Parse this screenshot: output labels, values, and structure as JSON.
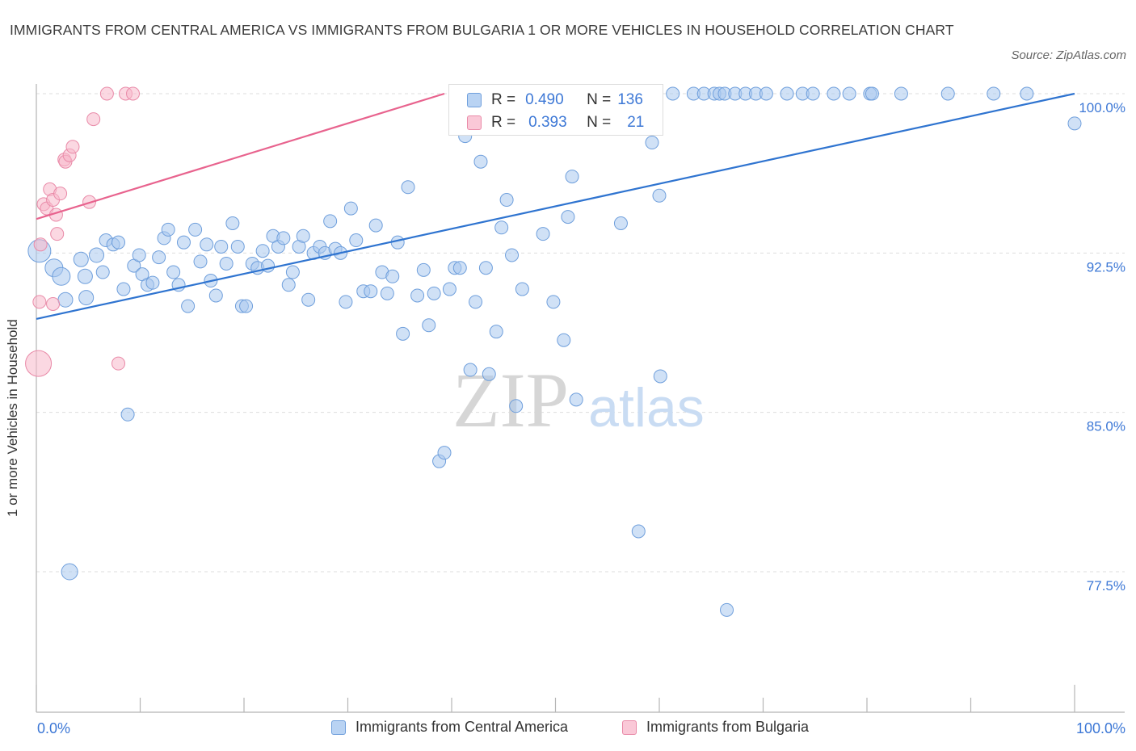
{
  "title": "IMMIGRANTS FROM CENTRAL AMERICA VS IMMIGRANTS FROM BULGARIA 1 OR MORE VEHICLES IN HOUSEHOLD CORRELATION CHART",
  "source": "Source: ZipAtlas.com",
  "watermark": {
    "zip": "ZIP",
    "atlas": "atlas"
  },
  "colors": {
    "blue_fill": "#a9c8ef",
    "blue_stroke": "#6f9fdc",
    "blue_line": "#2f74d0",
    "pink_fill": "#f7b8cb",
    "pink_stroke": "#e98aa8",
    "pink_line": "#e8638e",
    "axis_label": "#3d78d6",
    "grid": "#dddddd"
  },
  "stats_box": {
    "rows": [
      {
        "r_label": "R =",
        "r_value": "0.490",
        "n_label": "N =",
        "n_value": "136"
      },
      {
        "r_label": "R =",
        "r_value": "0.393",
        "n_label": "N =",
        "n_value": "21"
      }
    ]
  },
  "legend": {
    "central_america": "Immigrants from Central America",
    "bulgaria": "Immigrants from Bulgaria"
  },
  "chart_data": {
    "type": "scatter",
    "xlabel": "",
    "ylabel": "1 or more Vehicles in Household",
    "xlim": [
      0,
      100
    ],
    "ylim": [
      70,
      100
    ],
    "x_tick_labels": [
      "0.0%",
      "100.0%"
    ],
    "y_ticks": [
      77.5,
      85.0,
      92.5,
      100.0
    ],
    "y_tick_labels": [
      "77.5%",
      "85.0%",
      "92.5%",
      "100.0%"
    ],
    "grid": true,
    "series": [
      {
        "name": "Immigrants from Central America",
        "color": "#a9c8ef",
        "trend": {
          "x": [
            0,
            100
          ],
          "y": [
            89.4,
            100.0
          ]
        },
        "points": [
          {
            "x": 0.3,
            "y": 92.6,
            "s": 14
          },
          {
            "x": 1.7,
            "y": 91.8,
            "s": 11
          },
          {
            "x": 2.4,
            "y": 91.4,
            "s": 11
          },
          {
            "x": 2.8,
            "y": 90.3,
            "s": 9
          },
          {
            "x": 3.2,
            "y": 77.5,
            "s": 10
          },
          {
            "x": 4.3,
            "y": 92.2,
            "s": 9
          },
          {
            "x": 4.7,
            "y": 91.4,
            "s": 9
          },
          {
            "x": 4.8,
            "y": 90.4,
            "s": 9
          },
          {
            "x": 5.8,
            "y": 92.4,
            "s": 9
          },
          {
            "x": 6.4,
            "y": 91.6,
            "s": 8
          },
          {
            "x": 6.7,
            "y": 93.1,
            "s": 8
          },
          {
            "x": 7.4,
            "y": 92.9,
            "s": 8
          },
          {
            "x": 7.9,
            "y": 93.0,
            "s": 8
          },
          {
            "x": 8.4,
            "y": 90.8,
            "s": 8
          },
          {
            "x": 8.8,
            "y": 84.9,
            "s": 8
          },
          {
            "x": 9.4,
            "y": 91.9,
            "s": 8
          },
          {
            "x": 9.9,
            "y": 92.4,
            "s": 8
          },
          {
            "x": 10.2,
            "y": 91.5,
            "s": 8
          },
          {
            "x": 10.7,
            "y": 91.0,
            "s": 8
          },
          {
            "x": 11.2,
            "y": 91.1,
            "s": 8
          },
          {
            "x": 11.8,
            "y": 92.3,
            "s": 8
          },
          {
            "x": 12.3,
            "y": 93.2,
            "s": 8
          },
          {
            "x": 12.7,
            "y": 93.6,
            "s": 8
          },
          {
            "x": 13.2,
            "y": 91.6,
            "s": 8
          },
          {
            "x": 13.7,
            "y": 91.0,
            "s": 8
          },
          {
            "x": 14.2,
            "y": 93.0,
            "s": 8
          },
          {
            "x": 14.6,
            "y": 90.0,
            "s": 8
          },
          {
            "x": 15.3,
            "y": 93.6,
            "s": 8
          },
          {
            "x": 15.8,
            "y": 92.1,
            "s": 8
          },
          {
            "x": 16.4,
            "y": 92.9,
            "s": 8
          },
          {
            "x": 16.8,
            "y": 91.2,
            "s": 8
          },
          {
            "x": 17.3,
            "y": 90.5,
            "s": 8
          },
          {
            "x": 17.8,
            "y": 92.8,
            "s": 8
          },
          {
            "x": 18.3,
            "y": 92.0,
            "s": 8
          },
          {
            "x": 18.9,
            "y": 93.9,
            "s": 8
          },
          {
            "x": 19.4,
            "y": 92.8,
            "s": 8
          },
          {
            "x": 19.8,
            "y": 90.0,
            "s": 8
          },
          {
            "x": 20.2,
            "y": 90.0,
            "s": 8
          },
          {
            "x": 20.8,
            "y": 92.0,
            "s": 8
          },
          {
            "x": 21.3,
            "y": 91.8,
            "s": 8
          },
          {
            "x": 21.8,
            "y": 92.6,
            "s": 8
          },
          {
            "x": 22.3,
            "y": 91.9,
            "s": 8
          },
          {
            "x": 22.8,
            "y": 93.3,
            "s": 8
          },
          {
            "x": 23.3,
            "y": 92.8,
            "s": 8
          },
          {
            "x": 23.8,
            "y": 93.2,
            "s": 8
          },
          {
            "x": 24.3,
            "y": 91.0,
            "s": 8
          },
          {
            "x": 24.7,
            "y": 91.6,
            "s": 8
          },
          {
            "x": 25.3,
            "y": 92.8,
            "s": 8
          },
          {
            "x": 25.7,
            "y": 93.3,
            "s": 8
          },
          {
            "x": 26.2,
            "y": 90.3,
            "s": 8
          },
          {
            "x": 26.7,
            "y": 92.5,
            "s": 8
          },
          {
            "x": 27.3,
            "y": 92.8,
            "s": 8
          },
          {
            "x": 27.8,
            "y": 92.5,
            "s": 8
          },
          {
            "x": 28.3,
            "y": 94.0,
            "s": 8
          },
          {
            "x": 28.8,
            "y": 92.7,
            "s": 8
          },
          {
            "x": 29.3,
            "y": 92.5,
            "s": 8
          },
          {
            "x": 29.8,
            "y": 90.2,
            "s": 8
          },
          {
            "x": 30.3,
            "y": 94.6,
            "s": 8
          },
          {
            "x": 30.8,
            "y": 93.1,
            "s": 8
          },
          {
            "x": 31.5,
            "y": 90.7,
            "s": 8
          },
          {
            "x": 32.2,
            "y": 90.7,
            "s": 8
          },
          {
            "x": 32.7,
            "y": 93.8,
            "s": 8
          },
          {
            "x": 33.3,
            "y": 91.6,
            "s": 8
          },
          {
            "x": 33.8,
            "y": 90.6,
            "s": 8
          },
          {
            "x": 34.3,
            "y": 91.4,
            "s": 8
          },
          {
            "x": 34.8,
            "y": 93.0,
            "s": 8
          },
          {
            "x": 35.3,
            "y": 88.7,
            "s": 8
          },
          {
            "x": 35.8,
            "y": 95.6,
            "s": 8
          },
          {
            "x": 36.7,
            "y": 90.5,
            "s": 8
          },
          {
            "x": 37.3,
            "y": 91.7,
            "s": 8
          },
          {
            "x": 37.8,
            "y": 89.1,
            "s": 8
          },
          {
            "x": 38.3,
            "y": 90.6,
            "s": 8
          },
          {
            "x": 38.8,
            "y": 82.7,
            "s": 8
          },
          {
            "x": 39.3,
            "y": 83.1,
            "s": 8
          },
          {
            "x": 39.8,
            "y": 90.8,
            "s": 8
          },
          {
            "x": 40.3,
            "y": 91.8,
            "s": 8
          },
          {
            "x": 40.8,
            "y": 91.8,
            "s": 8
          },
          {
            "x": 41.3,
            "y": 98.0,
            "s": 8
          },
          {
            "x": 41.8,
            "y": 87.0,
            "s": 8
          },
          {
            "x": 42.3,
            "y": 90.2,
            "s": 8
          },
          {
            "x": 42.8,
            "y": 96.8,
            "s": 8
          },
          {
            "x": 43.3,
            "y": 91.8,
            "s": 8
          },
          {
            "x": 43.6,
            "y": 86.8,
            "s": 8
          },
          {
            "x": 44.3,
            "y": 88.8,
            "s": 8
          },
          {
            "x": 44.8,
            "y": 93.7,
            "s": 8
          },
          {
            "x": 45.3,
            "y": 95.0,
            "s": 8
          },
          {
            "x": 45.8,
            "y": 92.4,
            "s": 8
          },
          {
            "x": 46.2,
            "y": 85.3,
            "s": 8
          },
          {
            "x": 46.8,
            "y": 90.8,
            "s": 8
          },
          {
            "x": 47.3,
            "y": 100.0,
            "s": 8
          },
          {
            "x": 47.8,
            "y": 100.0,
            "s": 8
          },
          {
            "x": 48.3,
            "y": 99.2,
            "s": 8
          },
          {
            "x": 48.8,
            "y": 93.4,
            "s": 8
          },
          {
            "x": 49.3,
            "y": 100.0,
            "s": 8
          },
          {
            "x": 49.8,
            "y": 90.2,
            "s": 8
          },
          {
            "x": 50.8,
            "y": 88.4,
            "s": 8
          },
          {
            "x": 51.2,
            "y": 94.2,
            "s": 8
          },
          {
            "x": 51.6,
            "y": 96.1,
            "s": 8
          },
          {
            "x": 52.0,
            "y": 85.6,
            "s": 8
          },
          {
            "x": 52.5,
            "y": 98.5,
            "s": 8
          },
          {
            "x": 53.3,
            "y": 100.0,
            "s": 8
          },
          {
            "x": 54.8,
            "y": 100.0,
            "s": 8
          },
          {
            "x": 55.8,
            "y": 100.0,
            "s": 8
          },
          {
            "x": 56.3,
            "y": 93.9,
            "s": 8
          },
          {
            "x": 57.3,
            "y": 100.0,
            "s": 8
          },
          {
            "x": 58.3,
            "y": 100.0,
            "s": 8
          },
          {
            "x": 59.3,
            "y": 97.7,
            "s": 8
          },
          {
            "x": 58.0,
            "y": 79.4,
            "s": 8
          },
          {
            "x": 60.0,
            "y": 95.2,
            "s": 8
          },
          {
            "x": 60.1,
            "y": 86.7,
            "s": 8
          },
          {
            "x": 61.3,
            "y": 100.0,
            "s": 8
          },
          {
            "x": 63.3,
            "y": 100.0,
            "s": 8
          },
          {
            "x": 64.3,
            "y": 100.0,
            "s": 8
          },
          {
            "x": 65.3,
            "y": 100.0,
            "s": 8
          },
          {
            "x": 65.8,
            "y": 100.0,
            "s": 8
          },
          {
            "x": 66.3,
            "y": 100.0,
            "s": 8
          },
          {
            "x": 67.3,
            "y": 100.0,
            "s": 8
          },
          {
            "x": 66.5,
            "y": 75.7,
            "s": 8
          },
          {
            "x": 68.3,
            "y": 100.0,
            "s": 8
          },
          {
            "x": 69.3,
            "y": 100.0,
            "s": 8
          },
          {
            "x": 70.3,
            "y": 100.0,
            "s": 8
          },
          {
            "x": 72.3,
            "y": 100.0,
            "s": 8
          },
          {
            "x": 73.8,
            "y": 100.0,
            "s": 8
          },
          {
            "x": 74.8,
            "y": 100.0,
            "s": 8
          },
          {
            "x": 76.8,
            "y": 100.0,
            "s": 8
          },
          {
            "x": 78.3,
            "y": 100.0,
            "s": 8
          },
          {
            "x": 80.3,
            "y": 100.0,
            "s": 8
          },
          {
            "x": 80.5,
            "y": 100.0,
            "s": 8
          },
          {
            "x": 83.3,
            "y": 100.0,
            "s": 8
          },
          {
            "x": 87.8,
            "y": 100.0,
            "s": 8
          },
          {
            "x": 92.2,
            "y": 100.0,
            "s": 8
          },
          {
            "x": 95.4,
            "y": 100.0,
            "s": 8
          },
          {
            "x": 100.0,
            "y": 98.6,
            "s": 8
          }
        ]
      },
      {
        "name": "Immigrants from Bulgaria",
        "color": "#f7b8cb",
        "trend": {
          "x": [
            0,
            39.3
          ],
          "y": [
            94.1,
            100.0
          ]
        },
        "points": [
          {
            "x": 0.2,
            "y": 87.3,
            "s": 16
          },
          {
            "x": 0.3,
            "y": 90.2,
            "s": 8
          },
          {
            "x": 0.4,
            "y": 92.9,
            "s": 8
          },
          {
            "x": 0.7,
            "y": 94.8,
            "s": 8
          },
          {
            "x": 1.0,
            "y": 94.6,
            "s": 8
          },
          {
            "x": 1.3,
            "y": 95.5,
            "s": 8
          },
          {
            "x": 1.6,
            "y": 95.0,
            "s": 8
          },
          {
            "x": 1.6,
            "y": 90.1,
            "s": 8
          },
          {
            "x": 1.9,
            "y": 94.3,
            "s": 8
          },
          {
            "x": 2.0,
            "y": 93.4,
            "s": 8
          },
          {
            "x": 2.3,
            "y": 95.3,
            "s": 8
          },
          {
            "x": 2.7,
            "y": 96.9,
            "s": 8
          },
          {
            "x": 2.8,
            "y": 96.8,
            "s": 8
          },
          {
            "x": 3.2,
            "y": 97.1,
            "s": 8
          },
          {
            "x": 3.5,
            "y": 97.5,
            "s": 8
          },
          {
            "x": 5.1,
            "y": 94.9,
            "s": 8
          },
          {
            "x": 5.5,
            "y": 98.8,
            "s": 8
          },
          {
            "x": 6.8,
            "y": 100.0,
            "s": 8
          },
          {
            "x": 7.9,
            "y": 87.3,
            "s": 8
          },
          {
            "x": 8.6,
            "y": 100.0,
            "s": 8
          },
          {
            "x": 9.3,
            "y": 100.0,
            "s": 8
          }
        ]
      }
    ]
  }
}
